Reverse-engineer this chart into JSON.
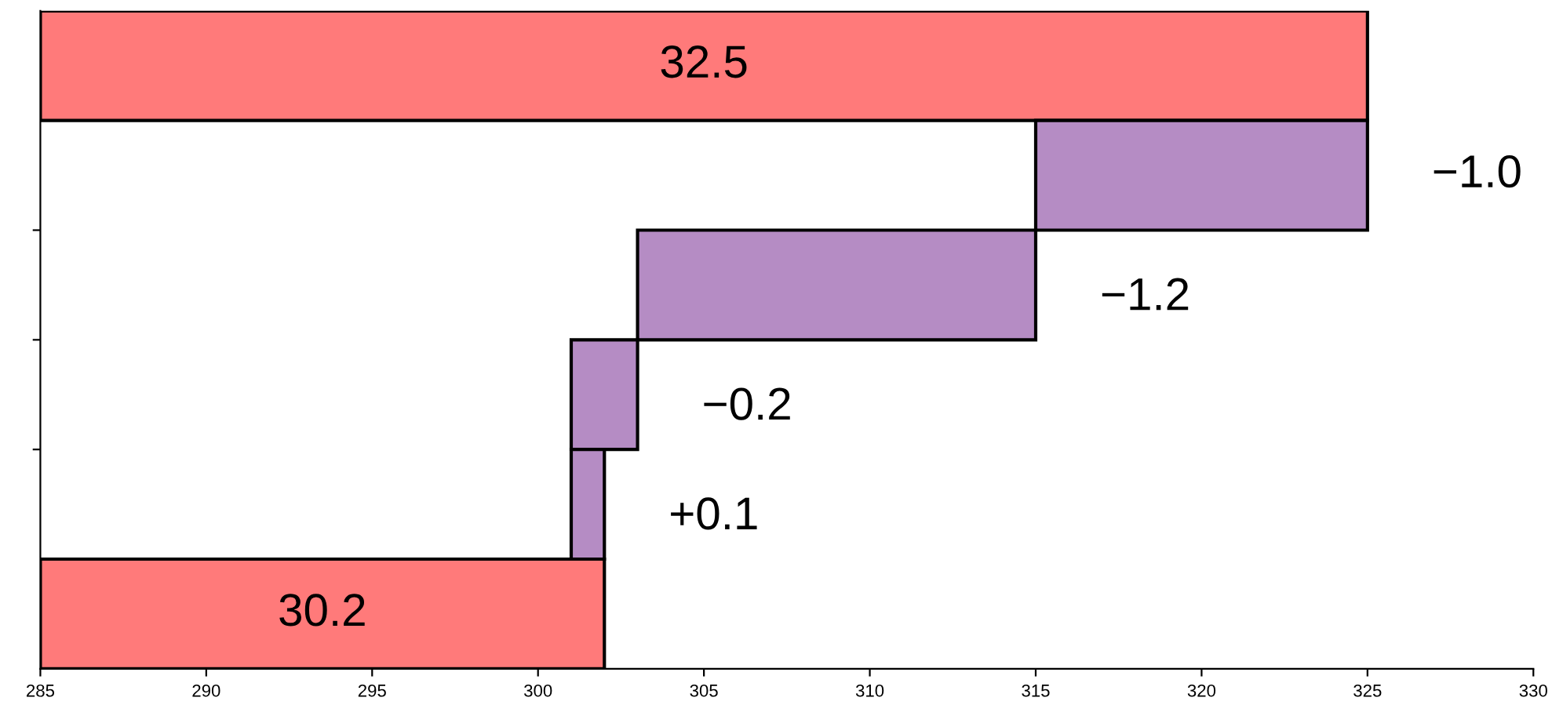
{
  "chart_data": {
    "type": "bar",
    "orientation": "horizontal",
    "categories": [
      null,
      null,
      null,
      null,
      null,
      null
    ],
    "values": [
      40,
      -10,
      -12,
      -2,
      1,
      17
    ],
    "base": [
      285,
      325,
      315,
      303,
      301,
      285
    ],
    "colors": [
      "#ff7a7a",
      "#b58cc4",
      "#b58cc4",
      "#b58cc4",
      "#b58cc4",
      "#ff7a7a"
    ],
    "annotations": [
      "32.5",
      "−1.0",
      "−1.2",
      "−0.2",
      "+0.1",
      "30.2"
    ],
    "xlim": [
      285,
      330
    ],
    "xticks": [
      285,
      290,
      295,
      300,
      305,
      310,
      315,
      320,
      325,
      330
    ],
    "tick_labels": "x",
    "grid": false,
    "legend": false
  }
}
